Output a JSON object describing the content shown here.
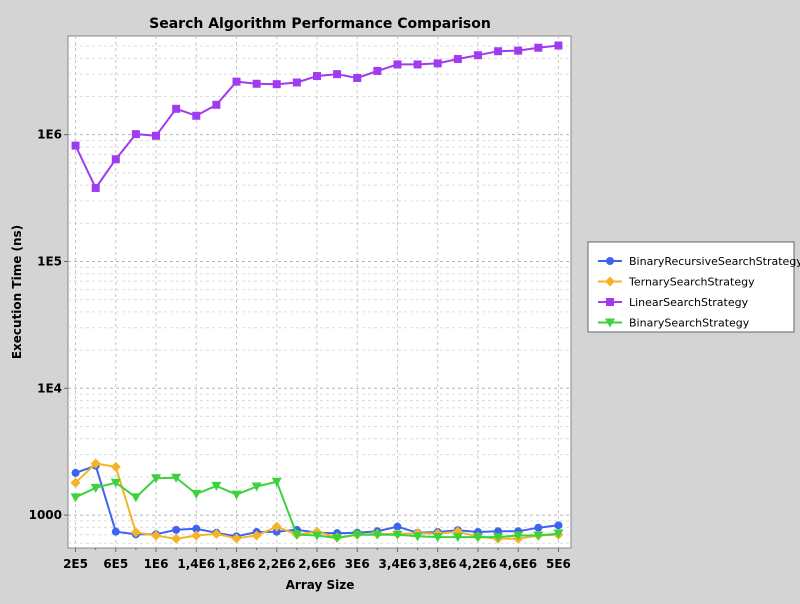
{
  "chart_data": {
    "type": "line",
    "title": "Search Algorithm Performance Comparison",
    "xlabel": "Array Size",
    "ylabel": "Execution Time (ns)",
    "yscale": "log",
    "grid": true,
    "legend_position": "right",
    "xlim": [
      125000,
      5125000
    ],
    "ylim": [
      550,
      6000000
    ],
    "x_ticks": [
      {
        "value": 200000,
        "label": "2E5"
      },
      {
        "value": 600000,
        "label": "6E5"
      },
      {
        "value": 1000000,
        "label": "1E6"
      },
      {
        "value": 1400000,
        "label": "1,4E6"
      },
      {
        "value": 1800000,
        "label": "1,8E6"
      },
      {
        "value": 2200000,
        "label": "2,2E6"
      },
      {
        "value": 2600000,
        "label": "2,6E6"
      },
      {
        "value": 3000000,
        "label": "3E6"
      },
      {
        "value": 3400000,
        "label": "3,4E6"
      },
      {
        "value": 3800000,
        "label": "3,8E6"
      },
      {
        "value": 4200000,
        "label": "4,2E6"
      },
      {
        "value": 4600000,
        "label": "4,6E6"
      },
      {
        "value": 5000000,
        "label": "5E6"
      }
    ],
    "y_ticks": [
      {
        "value": 1000,
        "label": "1000"
      },
      {
        "value": 10000,
        "label": "1E4"
      },
      {
        "value": 100000,
        "label": "1E5"
      },
      {
        "value": 1000000,
        "label": "1E6"
      }
    ],
    "x": [
      200000,
      400000,
      600000,
      800000,
      1000000,
      1200000,
      1400000,
      1600000,
      1800000,
      2000000,
      2200000,
      2400000,
      2600000,
      2800000,
      3000000,
      3200000,
      3400000,
      3600000,
      3800000,
      4000000,
      4200000,
      4400000,
      4600000,
      4800000,
      5000000
    ],
    "series": [
      {
        "name": "BinaryRecursiveSearchStrategy",
        "color": "#3c64f0",
        "marker": "circle",
        "values": [
          2150,
          2450,
          740,
          705,
          705,
          765,
          780,
          725,
          680,
          735,
          740,
          765,
          725,
          720,
          725,
          745,
          810,
          725,
          735,
          760,
          735,
          745,
          745,
          795,
          830
        ]
      },
      {
        "name": "TernarySearchStrategy",
        "color": "#f5b428",
        "marker": "diamond",
        "values": [
          1800,
          2550,
          2400,
          730,
          690,
          650,
          690,
          710,
          655,
          690,
          810,
          700,
          740,
          665,
          700,
          710,
          710,
          720,
          715,
          740,
          675,
          650,
          650,
          690,
          700
        ]
      },
      {
        "name": "LinearSearchStrategy",
        "color": "#a03cf0",
        "marker": "square",
        "values": [
          820000,
          380000,
          640000,
          1010000,
          980000,
          1600000,
          1410000,
          1720000,
          2620000,
          2520000,
          2500000,
          2580000,
          2900000,
          3000000,
          2800000,
          3180000,
          3580000,
          3580000,
          3650000,
          3950000,
          4230000,
          4550000,
          4600000,
          4850000,
          5050000
        ]
      },
      {
        "name": "BinarySearchStrategy",
        "color": "#3cd23c",
        "marker": "triangle-down",
        "values": [
          1380,
          1640,
          1800,
          1380,
          1950,
          1970,
          1470,
          1700,
          1450,
          1680,
          1830,
          700,
          690,
          660,
          700,
          700,
          700,
          680,
          670,
          670,
          670,
          670,
          690,
          690,
          715
        ]
      }
    ]
  }
}
